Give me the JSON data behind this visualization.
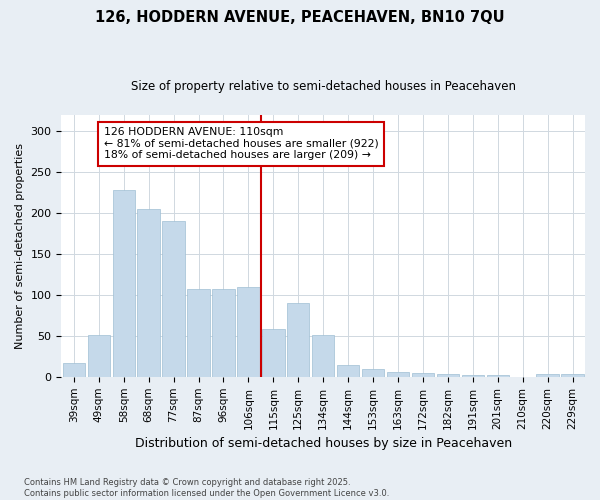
{
  "title": "126, HODDERN AVENUE, PEACEHAVEN, BN10 7QU",
  "subtitle": "Size of property relative to semi-detached houses in Peacehaven",
  "xlabel": "Distribution of semi-detached houses by size in Peacehaven",
  "ylabel": "Number of semi-detached properties",
  "categories": [
    "39sqm",
    "49sqm",
    "58sqm",
    "68sqm",
    "77sqm",
    "87sqm",
    "96sqm",
    "106sqm",
    "115sqm",
    "125sqm",
    "134sqm",
    "144sqm",
    "153sqm",
    "163sqm",
    "172sqm",
    "182sqm",
    "191sqm",
    "201sqm",
    "210sqm",
    "220sqm",
    "229sqm"
  ],
  "values": [
    17,
    51,
    228,
    205,
    190,
    107,
    107,
    110,
    59,
    90,
    51,
    14,
    9,
    6,
    5,
    4,
    2,
    2,
    0,
    3,
    3
  ],
  "bar_color": "#c5d9ea",
  "bar_edge_color": "#a0bfd4",
  "vline_color": "#cc0000",
  "annotation_text": "126 HODDERN AVENUE: 110sqm\n← 81% of semi-detached houses are smaller (922)\n18% of semi-detached houses are larger (209) →",
  "annotation_box_color": "#ffffff",
  "annotation_box_edge": "#cc0000",
  "ylim": [
    0,
    320
  ],
  "yticks": [
    0,
    50,
    100,
    150,
    200,
    250,
    300
  ],
  "footer": "Contains HM Land Registry data © Crown copyright and database right 2025.\nContains public sector information licensed under the Open Government Licence v3.0.",
  "bg_color": "#e8eef4",
  "plot_bg_color": "#ffffff",
  "grid_color": "#d0d8e0"
}
